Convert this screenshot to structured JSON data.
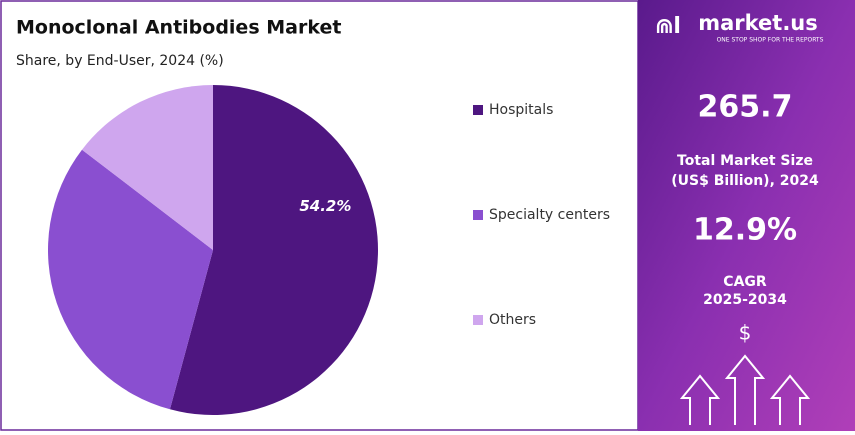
{
  "chart_data": {
    "type": "pie",
    "title": "Monoclonal Antibodies Market",
    "subtitle": "Share, by End-User, 2024 (%)",
    "categories": [
      "Hospitals",
      "Specialty centers",
      "Others"
    ],
    "values": [
      54.2,
      31.2,
      14.6
    ],
    "value_labels": [
      "54.2%",
      null,
      null
    ],
    "colors": [
      "#4e1680",
      "#8a4fd0",
      "#cfa6ee"
    ]
  },
  "side_panel": {
    "brand": "market.us",
    "tagline": "ONE STOP SHOP FOR THE REPORTS",
    "market_size": "265.7",
    "market_size_label": [
      "Total Market Size",
      "(US$ Billion), 2024"
    ],
    "cagr": "12.9%",
    "cagr_label": [
      "CAGR",
      "2025-2034"
    ],
    "currency": "$"
  }
}
